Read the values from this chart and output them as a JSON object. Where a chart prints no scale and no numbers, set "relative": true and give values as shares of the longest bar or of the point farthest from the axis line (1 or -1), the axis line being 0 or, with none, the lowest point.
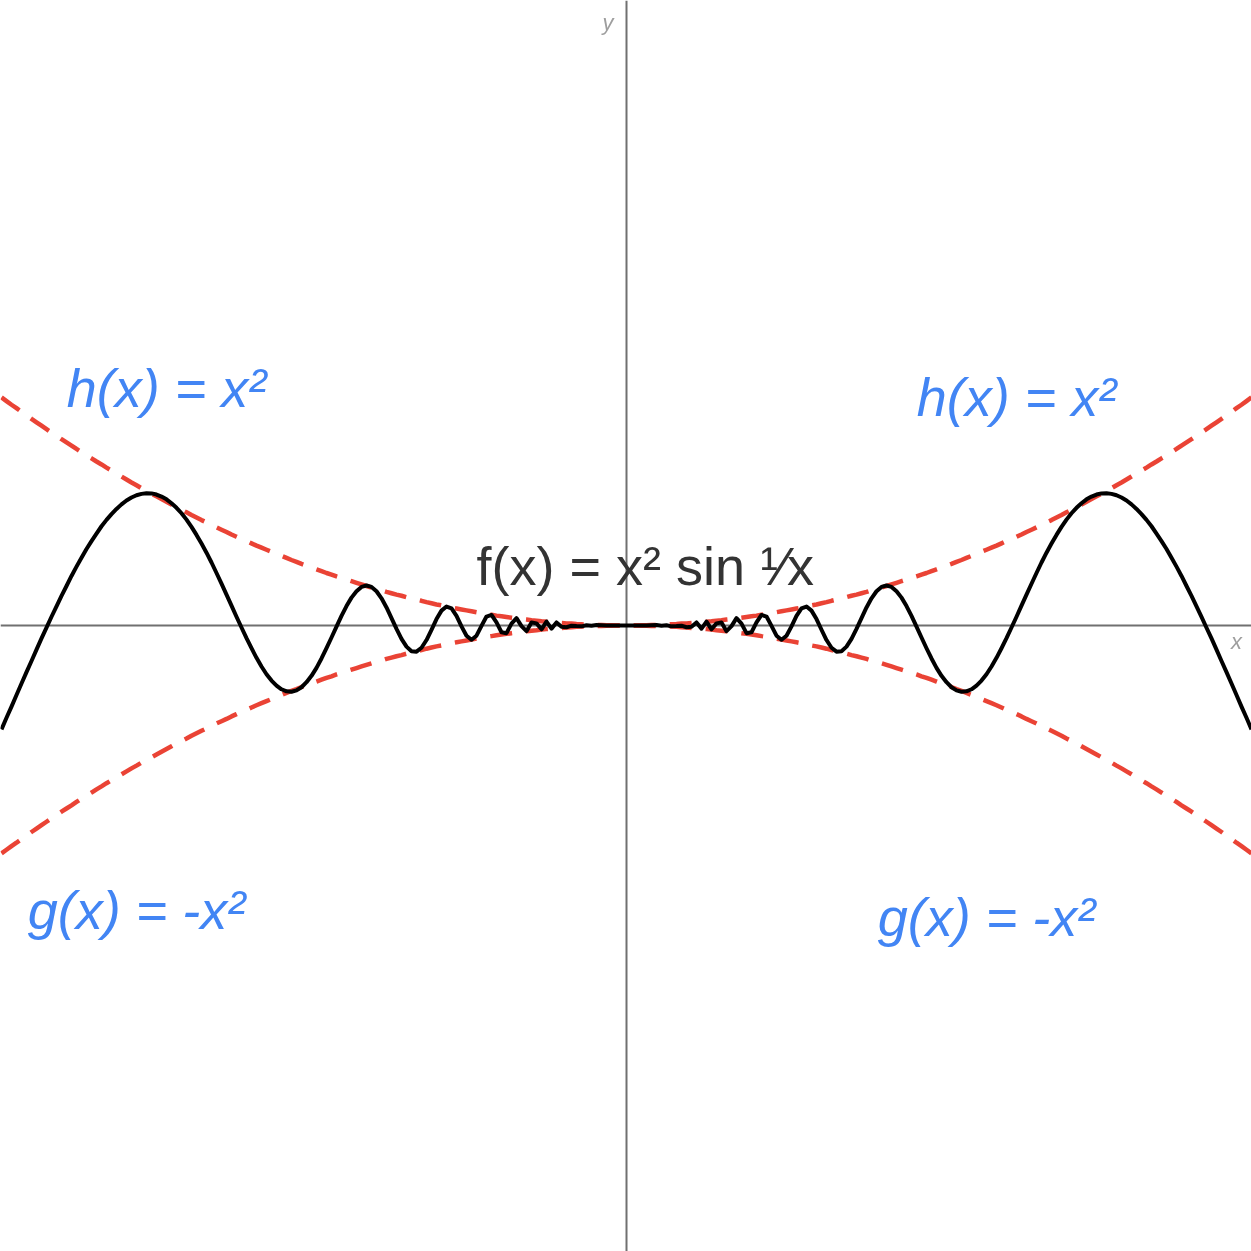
{
  "chart_data": {
    "type": "line",
    "xlabel": "x",
    "annotations": [
      "y"
    ],
    "relative": true,
    "categories": [
      null,
      null,
      null,
      null,
      null,
      null,
      null,
      null,
      null,
      null,
      null,
      null,
      null,
      null,
      null,
      null,
      null,
      null,
      null,
      null,
      null,
      null,
      null,
      null,
      null,
      null,
      null,
      null,
      null,
      null,
      null,
      null,
      null,
      null,
      null,
      null,
      null,
      null,
      null,
      null,
      null,
      null,
      null,
      null,
      null,
      null,
      null,
      null,
      null,
      null,
      null,
      null,
      null,
      null,
      null,
      null,
      null,
      null,
      null,
      null,
      null,
      null,
      null,
      null,
      null,
      null,
      null,
      null,
      null,
      null,
      null,
      null,
      null,
      null,
      null,
      null,
      null,
      null,
      null,
      null,
      null,
      null,
      null,
      null,
      null,
      null,
      null,
      null,
      null,
      null,
      null,
      null,
      null,
      null,
      null,
      null,
      null,
      null,
      null,
      null,
      null,
      null,
      null,
      null,
      null,
      null,
      null,
      null,
      null,
      null,
      null,
      null,
      null,
      null,
      null,
      null,
      null,
      null,
      null,
      null,
      null,
      null,
      null,
      null,
      null,
      null,
      null,
      null,
      null,
      null,
      null,
      null,
      null,
      null,
      null,
      null,
      null,
      null,
      null,
      null,
      null,
      null,
      null,
      null,
      null,
      null,
      null,
      null,
      null,
      null,
      null,
      null,
      null,
      null,
      null,
      null,
      null,
      null,
      null,
      null,
      null,
      null,
      null,
      null,
      null,
      null,
      null,
      null,
      null,
      null,
      null,
      null,
      null,
      null,
      null,
      null,
      null,
      null,
      null,
      null,
      null,
      null,
      null,
      null,
      null,
      null,
      null,
      null,
      null,
      null,
      null,
      null,
      null,
      null,
      null,
      null,
      null,
      null,
      null,
      null,
      null,
      null,
      null,
      null,
      null,
      null,
      null,
      null,
      null,
      null,
      null,
      null,
      null,
      null,
      null,
      null,
      null,
      null,
      null,
      null,
      null,
      null,
      null,
      null,
      null,
      null,
      null,
      null,
      null,
      null,
      null,
      null,
      null,
      null,
      null,
      null,
      null,
      null,
      null,
      null,
      null,
      null,
      null,
      null,
      null,
      null,
      null,
      null,
      null,
      null,
      null
    ],
    "series": [
      {
        "name": "h(x) = x²",
        "color": "#ea4335",
        "line_style": "dashed",
        "values": [
          1,
          0.984,
          0.968,
          0.953,
          0.937,
          0.922,
          0.906,
          0.891,
          0.876,
          0.861,
          0.846,
          0.832,
          0.817,
          0.803,
          0.789,
          0.774,
          0.76,
          0.746,
          0.733,
          0.719,
          0.706,
          0.692,
          0.679,
          0.666,
          0.653,
          0.64,
          0.627,
          0.615,
          0.602,
          0.59,
          0.578,
          0.566,
          0.554,
          0.542,
          0.53,
          0.518,
          0.507,
          0.496,
          0.484,
          0.473,
          0.462,
          0.452,
          0.441,
          0.43,
          0.42,
          0.41,
          0.399,
          0.389,
          0.379,
          0.37,
          0.36,
          0.35,
          0.341,
          0.332,
          0.323,
          0.314,
          0.305,
          0.296,
          0.287,
          0.279,
          0.27,
          0.262,
          0.254,
          0.246,
          0.238,
          0.23,
          0.223,
          0.215,
          0.208,
          0.201,
          0.194,
          0.187,
          0.18,
          0.173,
          0.166,
          0.16,
          0.154,
          0.147,
          0.141,
          0.135,
          0.13,
          0.124,
          0.118,
          0.113,
          0.108,
          0.102,
          0.097,
          0.092,
          0.088,
          0.083,
          0.078,
          0.074,
          0.07,
          0.066,
          0.062,
          0.058,
          0.054,
          0.05,
          0.047,
          0.043,
          0.04,
          0.037,
          0.034,
          0.031,
          0.028,
          0.026,
          0.023,
          0.021,
          0.018,
          0.016,
          0.014,
          0.013,
          0.011,
          0.009,
          0.008,
          0.006,
          0.005,
          0.004,
          0.003,
          0.002,
          0.002,
          0.001,
          0.001,
          0,
          0,
          0,
          0,
          0,
          0.001,
          0.001,
          0.002,
          0.002,
          0.003,
          0.004,
          0.005,
          0.006,
          0.008,
          0.009,
          0.011,
          0.013,
          0.014,
          0.016,
          0.018,
          0.021,
          0.023,
          0.026,
          0.028,
          0.031,
          0.034,
          0.037,
          0.04,
          0.043,
          0.047,
          0.05,
          0.054,
          0.058,
          0.062,
          0.066,
          0.07,
          0.074,
          0.078,
          0.083,
          0.088,
          0.092,
          0.097,
          0.102,
          0.108,
          0.113,
          0.118,
          0.124,
          0.13,
          0.135,
          0.141,
          0.147,
          0.154,
          0.16,
          0.166,
          0.173,
          0.18,
          0.187,
          0.194,
          0.201,
          0.208,
          0.215,
          0.223,
          0.23,
          0.238,
          0.246,
          0.254,
          0.262,
          0.27,
          0.279,
          0.287,
          0.296,
          0.305,
          0.314,
          0.323,
          0.332,
          0.341,
          0.35,
          0.36,
          0.37,
          0.379,
          0.389,
          0.399,
          0.41,
          0.42,
          0.43,
          0.441,
          0.452,
          0.462,
          0.473,
          0.484,
          0.496,
          0.507,
          0.518,
          0.53,
          0.542,
          0.554,
          0.566,
          0.578,
          0.59,
          0.602,
          0.615,
          0.627,
          0.64,
          0.653,
          0.666,
          0.679,
          0.692,
          0.706,
          0.719,
          0.733,
          0.746,
          0.76,
          0.774,
          0.789,
          0.803,
          0.817,
          0.832,
          0.846,
          0.861,
          0.876,
          0.891,
          0.906,
          0.922,
          0.937,
          0.953,
          0.968,
          0.984,
          1
        ]
      },
      {
        "name": "g(x) = -x²",
        "color": "#ea4335",
        "line_style": "dashed",
        "values": [
          -1,
          -0.984,
          -0.968,
          -0.953,
          -0.937,
          -0.922,
          -0.906,
          -0.891,
          -0.876,
          -0.861,
          -0.846,
          -0.832,
          -0.817,
          -0.803,
          -0.789,
          -0.774,
          -0.76,
          -0.746,
          -0.733,
          -0.719,
          -0.706,
          -0.692,
          -0.679,
          -0.666,
          -0.653,
          -0.64,
          -0.627,
          -0.615,
          -0.602,
          -0.59,
          -0.578,
          -0.566,
          -0.554,
          -0.542,
          -0.53,
          -0.518,
          -0.507,
          -0.496,
          -0.484,
          -0.473,
          -0.462,
          -0.452,
          -0.441,
          -0.43,
          -0.42,
          -0.41,
          -0.399,
          -0.389,
          -0.379,
          -0.37,
          -0.36,
          -0.35,
          -0.341,
          -0.332,
          -0.323,
          -0.314,
          -0.305,
          -0.296,
          -0.287,
          -0.279,
          -0.27,
          -0.262,
          -0.254,
          -0.246,
          -0.238,
          -0.23,
          -0.223,
          -0.215,
          -0.208,
          -0.201,
          -0.194,
          -0.187,
          -0.18,
          -0.173,
          -0.166,
          -0.16,
          -0.154,
          -0.147,
          -0.141,
          -0.135,
          -0.13,
          -0.124,
          -0.118,
          -0.113,
          -0.108,
          -0.102,
          -0.097,
          -0.092,
          -0.088,
          -0.083,
          -0.078,
          -0.074,
          -0.07,
          -0.066,
          -0.062,
          -0.058,
          -0.054,
          -0.05,
          -0.047,
          -0.043,
          -0.04,
          -0.037,
          -0.034,
          -0.031,
          -0.028,
          -0.026,
          -0.023,
          -0.021,
          -0.018,
          -0.016,
          -0.014,
          -0.013,
          -0.011,
          -0.009,
          -0.008,
          -0.006,
          -0.005,
          -0.004,
          -0.003,
          -0.002,
          -0.002,
          -0.001,
          -0.001,
          0,
          0,
          0,
          0,
          0,
          -0.001,
          -0.001,
          -0.002,
          -0.002,
          -0.003,
          -0.004,
          -0.005,
          -0.006,
          -0.008,
          -0.009,
          -0.011,
          -0.013,
          -0.014,
          -0.016,
          -0.018,
          -0.021,
          -0.023,
          -0.026,
          -0.028,
          -0.031,
          -0.034,
          -0.037,
          -0.04,
          -0.043,
          -0.047,
          -0.05,
          -0.054,
          -0.058,
          -0.062,
          -0.066,
          -0.07,
          -0.074,
          -0.078,
          -0.083,
          -0.088,
          -0.092,
          -0.097,
          -0.102,
          -0.108,
          -0.113,
          -0.118,
          -0.124,
          -0.13,
          -0.135,
          -0.141,
          -0.147,
          -0.154,
          -0.16,
          -0.166,
          -0.173,
          -0.18,
          -0.187,
          -0.194,
          -0.201,
          -0.208,
          -0.215,
          -0.223,
          -0.23,
          -0.238,
          -0.246,
          -0.254,
          -0.262,
          -0.27,
          -0.279,
          -0.287,
          -0.296,
          -0.305,
          -0.314,
          -0.323,
          -0.332,
          -0.341,
          -0.35,
          -0.36,
          -0.37,
          -0.379,
          -0.389,
          -0.399,
          -0.41,
          -0.42,
          -0.43,
          -0.441,
          -0.452,
          -0.462,
          -0.473,
          -0.484,
          -0.496,
          -0.507,
          -0.518,
          -0.53,
          -0.542,
          -0.554,
          -0.566,
          -0.578,
          -0.59,
          -0.602,
          -0.615,
          -0.627,
          -0.64,
          -0.653,
          -0.666,
          -0.679,
          -0.692,
          -0.706,
          -0.719,
          -0.733,
          -0.746,
          -0.76,
          -0.774,
          -0.789,
          -0.803,
          -0.817,
          -0.832,
          -0.846,
          -0.861,
          -0.876,
          -0.891,
          -0.906,
          -0.922,
          -0.937,
          -0.953,
          -0.968,
          -0.984,
          -1
        ]
      },
      {
        "name": "f(x) = x² sin ¹⁄x",
        "color": "#000000",
        "line_style": "solid",
        "values": [
          -0.456,
          -0.405,
          -0.356,
          -0.305,
          -0.255,
          -0.205,
          -0.156,
          -0.106,
          -0.057,
          -0.01,
          0.038,
          0.084,
          0.13,
          0.173,
          0.217,
          0.258,
          0.297,
          0.335,
          0.37,
          0.403,
          0.435,
          0.463,
          0.488,
          0.511,
          0.531,
          0.548,
          0.561,
          0.571,
          0.577,
          0.58,
          0.579,
          0.574,
          0.565,
          0.553,
          0.536,
          0.516,
          0.492,
          0.464,
          0.432,
          0.397,
          0.359,
          0.319,
          0.276,
          0.23,
          0.183,
          0.135,
          0.087,
          0.038,
          -0.009,
          -0.056,
          -0.1,
          -0.142,
          -0.18,
          -0.214,
          -0.242,
          -0.264,
          -0.28,
          -0.289,
          -0.291,
          -0.285,
          -0.271,
          -0.249,
          -0.221,
          -0.186,
          -0.145,
          -0.1,
          -0.053,
          -0.005,
          0.042,
          0.085,
          0.122,
          0.15,
          0.169,
          0.175,
          0.169,
          0.15,
          0.119,
          0.079,
          0.032,
          -0.015,
          -0.059,
          -0.093,
          -0.113,
          -0.115,
          -0.098,
          -0.064,
          -0.019,
          0.028,
          0.065,
          0.083,
          0.075,
          0.042,
          -0.004,
          -0.045,
          -0.063,
          -0.045,
          -0.002,
          0.039,
          0.046,
          0.013,
          -0.03,
          -0.034,
          0.008,
          0.032,
          -0.003,
          -0.025,
          0.013,
          0.009,
          -0.017,
          0.017,
          -0.014,
          0.013,
          -0.006,
          -0.008,
          -0.001,
          -0.003,
          -0.004,
          0.001,
          -0.001,
          0.002,
          0.001,
          0,
          0,
          0,
          0,
          0,
          0,
          0,
          0,
          0,
          0.001,
          0.002,
          -0.001,
          0.001,
          -0.004,
          -0.003,
          -0.001,
          -0.008,
          -0.006,
          0.013,
          -0.014,
          0.017,
          -0.017,
          0.009,
          0.013,
          -0.025,
          -0.003,
          0.032,
          0.008,
          -0.034,
          -0.03,
          0.013,
          0.046,
          0.039,
          -0.002,
          -0.045,
          -0.063,
          -0.045,
          -0.004,
          0.042,
          0.075,
          0.083,
          0.065,
          0.028,
          -0.019,
          -0.064,
          -0.098,
          -0.115,
          -0.113,
          -0.093,
          -0.059,
          -0.015,
          0.032,
          0.079,
          0.119,
          0.15,
          0.169,
          0.175,
          0.169,
          0.15,
          0.122,
          0.085,
          0.042,
          -0.005,
          -0.053,
          -0.1,
          -0.145,
          -0.186,
          -0.221,
          -0.249,
          -0.271,
          -0.285,
          -0.291,
          -0.289,
          -0.28,
          -0.264,
          -0.242,
          -0.214,
          -0.18,
          -0.142,
          -0.1,
          -0.056,
          -0.009,
          0.038,
          0.087,
          0.135,
          0.183,
          0.23,
          0.276,
          0.319,
          0.359,
          0.397,
          0.432,
          0.464,
          0.492,
          0.516,
          0.536,
          0.553,
          0.565,
          0.574,
          0.579,
          0.58,
          0.577,
          0.571,
          0.561,
          0.548,
          0.531,
          0.511,
          0.488,
          0.463,
          0.435,
          0.403,
          0.37,
          0.335,
          0.297,
          0.258,
          0.217,
          0.173,
          0.13,
          0.084,
          0.038,
          -0.01,
          -0.057,
          -0.106,
          -0.156,
          -0.205,
          -0.255,
          -0.305,
          -0.356,
          -0.405,
          -0.456
        ]
      }
    ]
  }
}
